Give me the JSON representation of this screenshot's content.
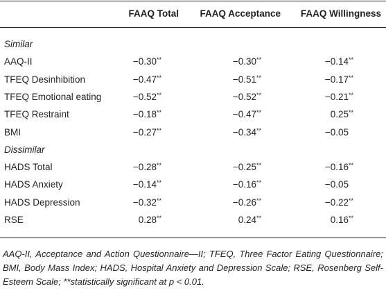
{
  "header": {
    "columns": [
      "FAAQ Total",
      "FAAQ Acceptance",
      "FAAQ Willingness"
    ]
  },
  "sections": [
    {
      "title": "Similar",
      "rows": [
        {
          "label": "AAQ-II",
          "cells": [
            {
              "value": "−0.30",
              "sig": "**"
            },
            {
              "value": "−0.30",
              "sig": "**"
            },
            {
              "value": "−0.14",
              "sig": "**"
            }
          ]
        },
        {
          "label": "TFEQ Desinhibition",
          "cells": [
            {
              "value": "−0.47",
              "sig": "**"
            },
            {
              "value": "−0.51",
              "sig": "**"
            },
            {
              "value": "−0.17",
              "sig": "**"
            }
          ]
        },
        {
          "label": "TFEQ Emotional eating",
          "cells": [
            {
              "value": "−0.52",
              "sig": "**"
            },
            {
              "value": "−0.52",
              "sig": "**"
            },
            {
              "value": "−0.21",
              "sig": "**"
            }
          ]
        },
        {
          "label": "TFEQ Restraint",
          "cells": [
            {
              "value": "−0.18",
              "sig": "**"
            },
            {
              "value": "−0.47",
              "sig": "**"
            },
            {
              "value": "0.25",
              "sig": "**"
            }
          ]
        },
        {
          "label": "BMI",
          "cells": [
            {
              "value": "−0.27",
              "sig": "**"
            },
            {
              "value": "−0.34",
              "sig": "**"
            },
            {
              "value": "−0.05"
            }
          ]
        }
      ]
    },
    {
      "title": "Dissimilar",
      "rows": [
        {
          "label": "HADS Total",
          "cells": [
            {
              "value": "−0.28",
              "sig": "**"
            },
            {
              "value": "−0.25",
              "sig": "**"
            },
            {
              "value": "−0.16",
              "sig": "**"
            }
          ]
        },
        {
          "label": "HADS Anxiety",
          "cells": [
            {
              "value": "−0.14",
              "sig": "**"
            },
            {
              "value": "−0.16",
              "sig": "**"
            },
            {
              "value": "−0.05"
            }
          ]
        },
        {
          "label": "HADS Depression",
          "cells": [
            {
              "value": "−0.32",
              "sig": "**"
            },
            {
              "value": "−0.26",
              "sig": "**"
            },
            {
              "value": "−0.22",
              "sig": "**"
            }
          ]
        },
        {
          "label": "RSE",
          "cells": [
            {
              "value": "0.28",
              "sig": "**"
            },
            {
              "value": "0.24",
              "sig": "**"
            },
            {
              "value": "0.16",
              "sig": "**"
            }
          ]
        }
      ]
    }
  ],
  "note": "AAQ-II, Acceptance and Action Questionnaire—II; TFEQ, Three Factor Eating Questionnaire; BMI, Body Mass Index; HADS, Hospital Anxiety and Depression Scale; RSE, Rosenberg Self-Esteem Scale; **statistically significant at p < 0.01."
}
